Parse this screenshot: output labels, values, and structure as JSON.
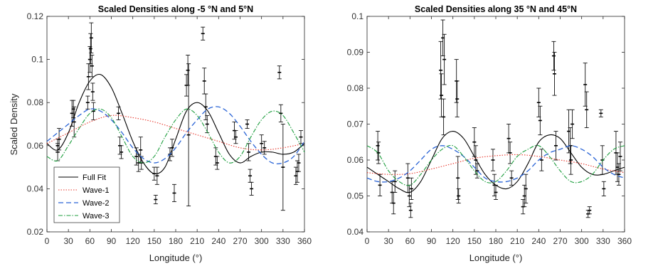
{
  "chart_data": [
    {
      "type": "line",
      "title": "Scaled Densities along -5 °N and 5°N",
      "xlabel": "Longitude (°)",
      "ylabel": "Scaled Density",
      "xlim": [
        0,
        360
      ],
      "ylim": [
        0.02,
        0.12
      ],
      "xticks": [
        "0",
        "30",
        "60",
        "90",
        "120",
        "150",
        "180",
        "210",
        "240",
        "270",
        "300",
        "330",
        "360"
      ],
      "yticks": [
        "0.02",
        "0.04",
        "0.06",
        "0.08",
        "0.1",
        "0.12"
      ],
      "grid": false,
      "legend": {
        "position": "bottom-left",
        "entries": [
          "Full Fit",
          "Wave-1",
          "Wave-2",
          "Wave-3"
        ]
      },
      "series": [
        {
          "name": "Full Fit",
          "color": "#000000",
          "style": "solid",
          "x": [
            0,
            15,
            30,
            45,
            60,
            75,
            90,
            105,
            120,
            135,
            150,
            165,
            180,
            195,
            210,
            225,
            240,
            255,
            270,
            285,
            300,
            315,
            330,
            345,
            360
          ],
          "y": [
            0.061,
            0.058,
            0.066,
            0.08,
            0.09,
            0.093,
            0.087,
            0.075,
            0.062,
            0.052,
            0.047,
            0.05,
            0.063,
            0.076,
            0.08,
            0.076,
            0.066,
            0.056,
            0.052,
            0.055,
            0.057,
            0.057,
            0.056,
            0.057,
            0.061
          ]
        },
        {
          "name": "Wave-1",
          "color": "#e8372c",
          "style": "dotted",
          "x": [
            0,
            30,
            60,
            90,
            120,
            150,
            180,
            210,
            240,
            270,
            300,
            330,
            360
          ],
          "y": [
            0.061,
            0.066,
            0.071,
            0.074,
            0.073,
            0.071,
            0.068,
            0.065,
            0.062,
            0.059,
            0.058,
            0.059,
            0.061
          ]
        },
        {
          "name": "Wave-2",
          "color": "#2a64d6",
          "style": "dashed",
          "x": [
            0,
            15,
            30,
            45,
            60,
            75,
            90,
            105,
            120,
            135,
            150,
            165,
            180,
            195,
            210,
            225,
            240,
            255,
            270,
            285,
            300,
            315,
            330,
            345,
            360
          ],
          "y": [
            0.062,
            0.066,
            0.07,
            0.074,
            0.077,
            0.076,
            0.072,
            0.066,
            0.059,
            0.054,
            0.052,
            0.054,
            0.059,
            0.066,
            0.072,
            0.077,
            0.078,
            0.075,
            0.069,
            0.062,
            0.056,
            0.052,
            0.052,
            0.055,
            0.062
          ]
        },
        {
          "name": "Wave-3",
          "color": "#1e9e3e",
          "style": "dashdot",
          "x": [
            0,
            15,
            30,
            45,
            60,
            75,
            90,
            105,
            120,
            135,
            150,
            165,
            180,
            195,
            210,
            225,
            240,
            255,
            270,
            285,
            300,
            315,
            330,
            345,
            360
          ],
          "y": [
            0.055,
            0.053,
            0.06,
            0.068,
            0.075,
            0.077,
            0.073,
            0.064,
            0.055,
            0.052,
            0.055,
            0.064,
            0.072,
            0.077,
            0.074,
            0.066,
            0.057,
            0.052,
            0.055,
            0.064,
            0.072,
            0.076,
            0.074,
            0.066,
            0.057
          ]
        }
      ],
      "observations": [
        {
          "x": 15,
          "y": 0.057,
          "e": 0.004
        },
        {
          "x": 15,
          "y": 0.06,
          "e": 0.003
        },
        {
          "x": 17,
          "y": 0.063,
          "e": 0.005
        },
        {
          "x": 35,
          "y": 0.075,
          "e": 0.006
        },
        {
          "x": 37,
          "y": 0.077,
          "e": 0.004
        },
        {
          "x": 38,
          "y": 0.071,
          "e": 0.007
        },
        {
          "x": 57,
          "y": 0.08,
          "e": 0.003
        },
        {
          "x": 58,
          "y": 0.092,
          "e": 0.006
        },
        {
          "x": 60,
          "y": 0.1,
          "e": 0.006
        },
        {
          "x": 61,
          "y": 0.105,
          "e": 0.007
        },
        {
          "x": 62,
          "y": 0.11,
          "e": 0.007
        },
        {
          "x": 63,
          "y": 0.097,
          "e": 0.005
        },
        {
          "x": 64,
          "y": 0.085,
          "e": 0.004
        },
        {
          "x": 65,
          "y": 0.076,
          "e": 0.004
        },
        {
          "x": 100,
          "y": 0.075,
          "e": 0.003
        },
        {
          "x": 102,
          "y": 0.06,
          "e": 0.004
        },
        {
          "x": 104,
          "y": 0.057,
          "e": 0.003
        },
        {
          "x": 125,
          "y": 0.055,
          "e": 0.004
        },
        {
          "x": 128,
          "y": 0.052,
          "e": 0.004
        },
        {
          "x": 131,
          "y": 0.058,
          "e": 0.006
        },
        {
          "x": 132,
          "y": 0.052,
          "e": 0.003
        },
        {
          "x": 150,
          "y": 0.047,
          "e": 0.003
        },
        {
          "x": 152,
          "y": 0.035,
          "e": 0.002
        },
        {
          "x": 154,
          "y": 0.046,
          "e": 0.004
        },
        {
          "x": 172,
          "y": 0.056,
          "e": 0.003
        },
        {
          "x": 175,
          "y": 0.059,
          "e": 0.004
        },
        {
          "x": 178,
          "y": 0.038,
          "e": 0.004
        },
        {
          "x": 195,
          "y": 0.088,
          "e": 0.005
        },
        {
          "x": 197,
          "y": 0.095,
          "e": 0.007
        },
        {
          "x": 198,
          "y": 0.065,
          "e": 0.033
        },
        {
          "x": 218,
          "y": 0.112,
          "e": 0.003
        },
        {
          "x": 220,
          "y": 0.09,
          "e": 0.006
        },
        {
          "x": 222,
          "y": 0.078,
          "e": 0.006
        },
        {
          "x": 224,
          "y": 0.07,
          "e": 0.004
        },
        {
          "x": 236,
          "y": 0.055,
          "e": 0.004
        },
        {
          "x": 238,
          "y": 0.052,
          "e": 0.003
        },
        {
          "x": 262,
          "y": 0.067,
          "e": 0.004
        },
        {
          "x": 264,
          "y": 0.064,
          "e": 0.003
        },
        {
          "x": 280,
          "y": 0.07,
          "e": 0.002
        },
        {
          "x": 282,
          "y": 0.057,
          "e": 0.004
        },
        {
          "x": 284,
          "y": 0.046,
          "e": 0.003
        },
        {
          "x": 286,
          "y": 0.04,
          "e": 0.003
        },
        {
          "x": 300,
          "y": 0.061,
          "e": 0.004
        },
        {
          "x": 304,
          "y": 0.059,
          "e": 0.003
        },
        {
          "x": 325,
          "y": 0.094,
          "e": 0.003
        },
        {
          "x": 327,
          "y": 0.075,
          "e": 0.004
        },
        {
          "x": 330,
          "y": 0.05,
          "e": 0.02
        },
        {
          "x": 348,
          "y": 0.046,
          "e": 0.004
        },
        {
          "x": 350,
          "y": 0.048,
          "e": 0.005
        },
        {
          "x": 352,
          "y": 0.052,
          "e": 0.004
        },
        {
          "x": 355,
          "y": 0.064,
          "e": 0.003
        }
      ]
    },
    {
      "type": "line",
      "title": "Scaled Densities along 35 °N and 45°N",
      "xlabel": "Longitude (°)",
      "ylabel": "",
      "xlim": [
        0,
        360
      ],
      "ylim": [
        0.04,
        0.1
      ],
      "xticks": [
        "0",
        "30",
        "60",
        "90",
        "120",
        "150",
        "180",
        "210",
        "240",
        "270",
        "300",
        "330",
        "360"
      ],
      "yticks": [
        "0.04",
        "0.05",
        "0.06",
        "0.07",
        "0.08",
        "0.09",
        "0.1"
      ],
      "grid": false,
      "series": [
        {
          "name": "Full Fit",
          "color": "#000000",
          "style": "solid",
          "x": [
            0,
            15,
            30,
            45,
            60,
            75,
            90,
            105,
            120,
            135,
            150,
            165,
            180,
            195,
            210,
            225,
            240,
            255,
            270,
            285,
            300,
            315,
            330,
            345,
            360
          ],
          "y": [
            0.058,
            0.056,
            0.054,
            0.052,
            0.051,
            0.054,
            0.06,
            0.066,
            0.068,
            0.066,
            0.061,
            0.056,
            0.053,
            0.052,
            0.054,
            0.059,
            0.065,
            0.067,
            0.066,
            0.062,
            0.058,
            0.056,
            0.056,
            0.057,
            0.058
          ]
        },
        {
          "name": "Wave-1",
          "color": "#e8372c",
          "style": "dotted",
          "x": [
            0,
            30,
            60,
            90,
            120,
            150,
            180,
            210,
            240,
            270,
            300,
            330,
            360
          ],
          "y": [
            0.0565,
            0.056,
            0.0562,
            0.0575,
            0.059,
            0.0605,
            0.0612,
            0.0615,
            0.061,
            0.06,
            0.059,
            0.0575,
            0.0565
          ]
        },
        {
          "name": "Wave-2",
          "color": "#2a64d6",
          "style": "dashed",
          "x": [
            0,
            15,
            30,
            45,
            60,
            75,
            90,
            105,
            120,
            135,
            150,
            165,
            180,
            195,
            210,
            225,
            240,
            255,
            270,
            285,
            300,
            315,
            330,
            345,
            360
          ],
          "y": [
            0.055,
            0.054,
            0.054,
            0.055,
            0.057,
            0.06,
            0.063,
            0.064,
            0.063,
            0.061,
            0.058,
            0.055,
            0.054,
            0.054,
            0.055,
            0.057,
            0.06,
            0.062,
            0.063,
            0.064,
            0.063,
            0.061,
            0.058,
            0.056,
            0.055
          ]
        },
        {
          "name": "Wave-3",
          "color": "#1e9e3e",
          "style": "dashdot",
          "x": [
            0,
            15,
            30,
            45,
            60,
            75,
            90,
            105,
            120,
            135,
            150,
            165,
            180,
            195,
            210,
            225,
            240,
            255,
            270,
            285,
            300,
            315,
            330,
            345,
            360
          ],
          "y": [
            0.064,
            0.062,
            0.057,
            0.054,
            0.053,
            0.056,
            0.06,
            0.063,
            0.064,
            0.061,
            0.057,
            0.054,
            0.054,
            0.057,
            0.061,
            0.063,
            0.064,
            0.061,
            0.057,
            0.054,
            0.054,
            0.056,
            0.06,
            0.063,
            0.064
          ]
        }
      ],
      "observations": [
        {
          "x": 15,
          "y": 0.064,
          "e": 0.004
        },
        {
          "x": 16,
          "y": 0.062,
          "e": 0.003
        },
        {
          "x": 18,
          "y": 0.053,
          "e": 0.003
        },
        {
          "x": 35,
          "y": 0.051,
          "e": 0.003
        },
        {
          "x": 37,
          "y": 0.048,
          "e": 0.003
        },
        {
          "x": 39,
          "y": 0.054,
          "e": 0.003
        },
        {
          "x": 57,
          "y": 0.055,
          "e": 0.004
        },
        {
          "x": 59,
          "y": 0.05,
          "e": 0.003
        },
        {
          "x": 61,
          "y": 0.046,
          "e": 0.002
        },
        {
          "x": 62,
          "y": 0.052,
          "e": 0.003
        },
        {
          "x": 103,
          "y": 0.085,
          "e": 0.008
        },
        {
          "x": 104,
          "y": 0.078,
          "e": 0.006
        },
        {
          "x": 106,
          "y": 0.094,
          "e": 0.005
        },
        {
          "x": 107,
          "y": 0.072,
          "e": 0.005
        },
        {
          "x": 108,
          "y": 0.088,
          "e": 0.007
        },
        {
          "x": 125,
          "y": 0.082,
          "e": 0.006
        },
        {
          "x": 126,
          "y": 0.077,
          "e": 0.005
        },
        {
          "x": 127,
          "y": 0.055,
          "e": 0.006
        },
        {
          "x": 128,
          "y": 0.05,
          "e": 0.002
        },
        {
          "x": 150,
          "y": 0.065,
          "e": 0.004
        },
        {
          "x": 152,
          "y": 0.06,
          "e": 0.004
        },
        {
          "x": 154,
          "y": 0.057,
          "e": 0.002
        },
        {
          "x": 176,
          "y": 0.06,
          "e": 0.003
        },
        {
          "x": 178,
          "y": 0.053,
          "e": 0.003
        },
        {
          "x": 180,
          "y": 0.051,
          "e": 0.002
        },
        {
          "x": 198,
          "y": 0.066,
          "e": 0.004
        },
        {
          "x": 200,
          "y": 0.062,
          "e": 0.003
        },
        {
          "x": 202,
          "y": 0.055,
          "e": 0.002
        },
        {
          "x": 218,
          "y": 0.047,
          "e": 0.002
        },
        {
          "x": 220,
          "y": 0.05,
          "e": 0.003
        },
        {
          "x": 222,
          "y": 0.052,
          "e": 0.004
        },
        {
          "x": 240,
          "y": 0.076,
          "e": 0.004
        },
        {
          "x": 242,
          "y": 0.071,
          "e": 0.004
        },
        {
          "x": 244,
          "y": 0.06,
          "e": 0.003
        },
        {
          "x": 261,
          "y": 0.089,
          "e": 0.004
        },
        {
          "x": 262,
          "y": 0.084,
          "e": 0.006
        },
        {
          "x": 264,
          "y": 0.064,
          "e": 0.004
        },
        {
          "x": 282,
          "y": 0.068,
          "e": 0.006
        },
        {
          "x": 284,
          "y": 0.064,
          "e": 0.005
        },
        {
          "x": 285,
          "y": 0.06,
          "e": 0.004
        },
        {
          "x": 287,
          "y": 0.07,
          "e": 0.004
        },
        {
          "x": 305,
          "y": 0.081,
          "e": 0.006
        },
        {
          "x": 307,
          "y": 0.074,
          "e": 0.005
        },
        {
          "x": 309,
          "y": 0.045,
          "e": 0.001
        },
        {
          "x": 311,
          "y": 0.046,
          "e": 0.001
        },
        {
          "x": 327,
          "y": 0.073,
          "e": 0.001
        },
        {
          "x": 329,
          "y": 0.06,
          "e": 0.004
        },
        {
          "x": 331,
          "y": 0.052,
          "e": 0.002
        },
        {
          "x": 348,
          "y": 0.062,
          "e": 0.006
        },
        {
          "x": 350,
          "y": 0.058,
          "e": 0.004
        },
        {
          "x": 352,
          "y": 0.056,
          "e": 0.003
        },
        {
          "x": 354,
          "y": 0.061,
          "e": 0.004
        }
      ]
    }
  ]
}
